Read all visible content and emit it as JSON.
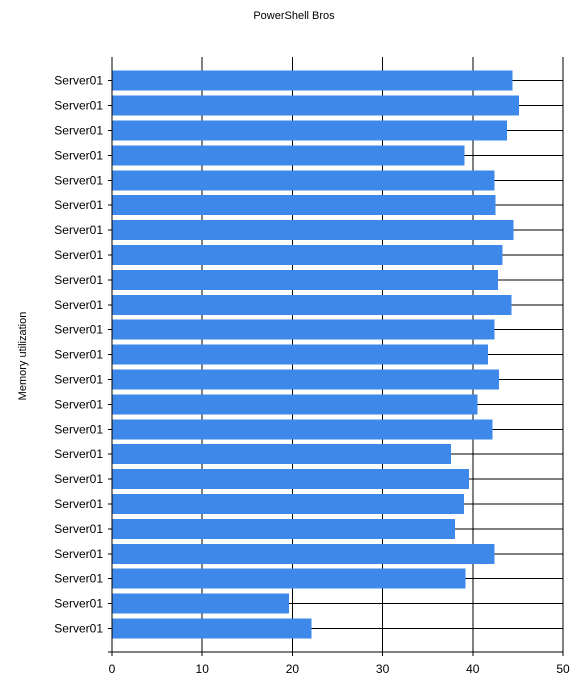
{
  "chart_data": {
    "type": "bar",
    "orientation": "horizontal",
    "title": "PowerShell Bros",
    "xlabel": "",
    "ylabel": "Memory utilization",
    "xlim": [
      0,
      50
    ],
    "x_ticks": [
      0,
      10,
      20,
      30,
      40,
      50
    ],
    "grid": true,
    "legend": "none",
    "bar_color": "#3e88ea",
    "categories": [
      "Server01",
      "Server01",
      "Server01",
      "Server01",
      "Server01",
      "Server01",
      "Server01",
      "Server01",
      "Server01",
      "Server01",
      "Server01",
      "Server01",
      "Server01",
      "Server01",
      "Server01",
      "Server01",
      "Server01",
      "Server01",
      "Server01",
      "Server01",
      "Server01",
      "Server01",
      "Server01"
    ],
    "values": [
      44.4,
      45.1,
      43.8,
      39.1,
      42.4,
      42.5,
      44.5,
      43.3,
      42.8,
      44.3,
      42.4,
      41.7,
      42.9,
      40.5,
      42.2,
      37.6,
      39.6,
      39.0,
      38.0,
      42.4,
      39.2,
      19.6,
      22.1
    ]
  }
}
